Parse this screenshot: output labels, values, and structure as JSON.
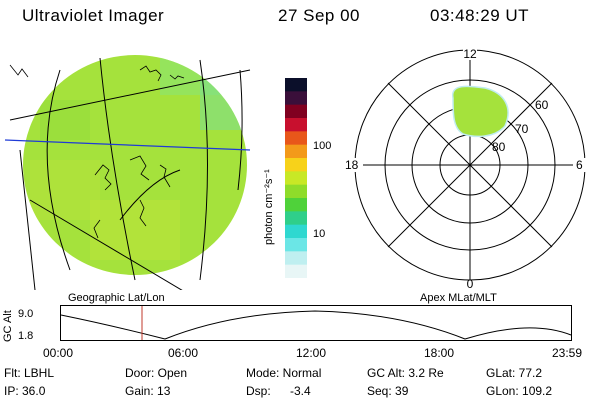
{
  "header": {
    "instrument": "Ultraviolet Imager",
    "date": "27 Sep 00",
    "time": "03:48:29 UT"
  },
  "colorbar": {
    "unit_label": "photon cm⁻²s⁻¹",
    "ticks": [
      "100",
      "10"
    ],
    "colors": [
      "#0b0f2a",
      "#3a0f3a",
      "#800020",
      "#c8102e",
      "#e8571a",
      "#f39a1a",
      "#f7d21a",
      "#c8e826",
      "#8fdc2a",
      "#4fd23a",
      "#2fcf8a",
      "#2fd8d0",
      "#6be6e6",
      "#bfeff0",
      "#e8f6f6"
    ]
  },
  "panels": {
    "left_caption": "Geographic Lat/Lon",
    "right_caption": "Apex MLat/MLT",
    "image_color": "#9be03a"
  },
  "polar": {
    "mlt_labels": {
      "top": "12",
      "bottom": "0",
      "left": "18",
      "right": "6"
    },
    "lat_labels": [
      "60",
      "70",
      "80"
    ]
  },
  "altitude_plot": {
    "ylabel": "GC Alt",
    "y_ticks": [
      "9.0",
      "1.8"
    ],
    "x_ticks": [
      "00:00",
      "06:00",
      "12:00",
      "18:00",
      "23:59"
    ],
    "marker_color": "#c0392b"
  },
  "info": {
    "flt": "Flt: LBHL",
    "ip": "IP: 36.0",
    "door": "Door: Open",
    "gain": "Gain: 13",
    "mode": "Mode: Normal",
    "dsp": "Dsp:",
    "dsp_val": "-3.4",
    "gcalt": "GC Alt: 3.2 Re",
    "seq": "Seq: 39",
    "glat": "GLat: 77.2",
    "glon": "GLon: 109.2"
  }
}
